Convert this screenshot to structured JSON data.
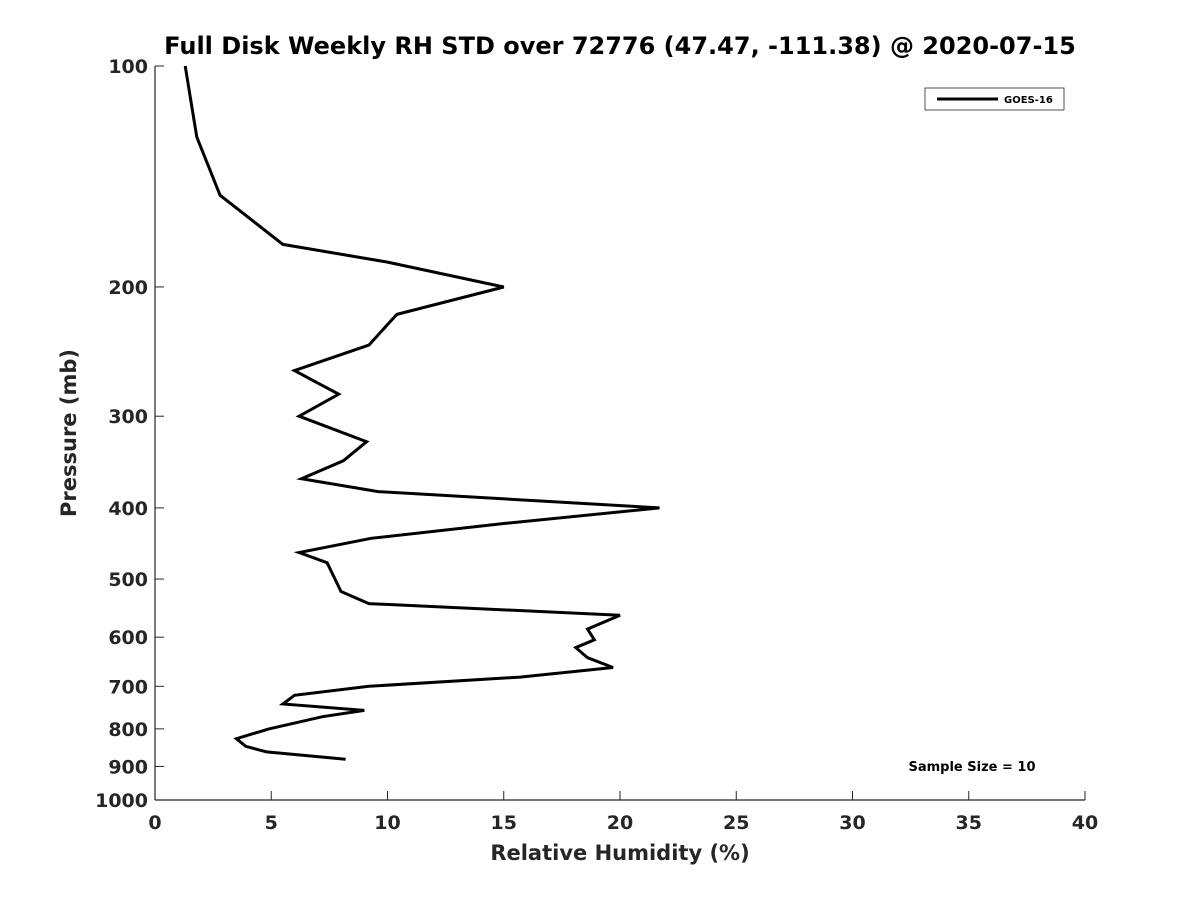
{
  "chart_data": {
    "type": "line",
    "title": "Full Disk Weekly RH STD over 72776 (47.47, -111.38) @ 2020-07-15",
    "xlabel": "Relative Humidity (%)",
    "ylabel": "Pressure (mb)",
    "xlim": [
      0,
      40
    ],
    "ylim": [
      100,
      1000
    ],
    "y_scale": "log",
    "y_reversed": true,
    "x_ticks": [
      0,
      5,
      10,
      15,
      20,
      25,
      30,
      35,
      40
    ],
    "y_ticks": [
      100,
      200,
      300,
      400,
      500,
      600,
      700,
      800,
      900,
      1000
    ],
    "grid": false,
    "legend_position": "top-right",
    "annotation": "Sample Size = 10",
    "series": [
      {
        "name": "GOES-16",
        "color": "#000000",
        "points": [
          {
            "x": 1.3,
            "p": 100
          },
          {
            "x": 1.8,
            "p": 125
          },
          {
            "x": 2.8,
            "p": 150
          },
          {
            "x": 5.5,
            "p": 175
          },
          {
            "x": 10.0,
            "p": 185
          },
          {
            "x": 15.0,
            "p": 200
          },
          {
            "x": 10.4,
            "p": 218
          },
          {
            "x": 9.2,
            "p": 240
          },
          {
            "x": 6.0,
            "p": 260
          },
          {
            "x": 7.9,
            "p": 280
          },
          {
            "x": 6.2,
            "p": 300
          },
          {
            "x": 9.1,
            "p": 325
          },
          {
            "x": 8.1,
            "p": 345
          },
          {
            "x": 6.3,
            "p": 365
          },
          {
            "x": 9.6,
            "p": 380
          },
          {
            "x": 21.7,
            "p": 400
          },
          {
            "x": 15.0,
            "p": 420
          },
          {
            "x": 9.3,
            "p": 440
          },
          {
            "x": 6.2,
            "p": 460
          },
          {
            "x": 7.4,
            "p": 475
          },
          {
            "x": 8.0,
            "p": 520
          },
          {
            "x": 9.2,
            "p": 540
          },
          {
            "x": 20.0,
            "p": 560
          },
          {
            "x": 18.6,
            "p": 585
          },
          {
            "x": 18.9,
            "p": 605
          },
          {
            "x": 18.1,
            "p": 620
          },
          {
            "x": 18.6,
            "p": 640
          },
          {
            "x": 19.7,
            "p": 660
          },
          {
            "x": 15.7,
            "p": 680
          },
          {
            "x": 9.2,
            "p": 700
          },
          {
            "x": 6.0,
            "p": 720
          },
          {
            "x": 5.5,
            "p": 740
          },
          {
            "x": 9.0,
            "p": 755
          },
          {
            "x": 7.2,
            "p": 770
          },
          {
            "x": 4.9,
            "p": 800
          },
          {
            "x": 3.5,
            "p": 825
          },
          {
            "x": 3.9,
            "p": 845
          },
          {
            "x": 4.8,
            "p": 860
          },
          {
            "x": 8.2,
            "p": 880
          }
        ]
      }
    ]
  }
}
